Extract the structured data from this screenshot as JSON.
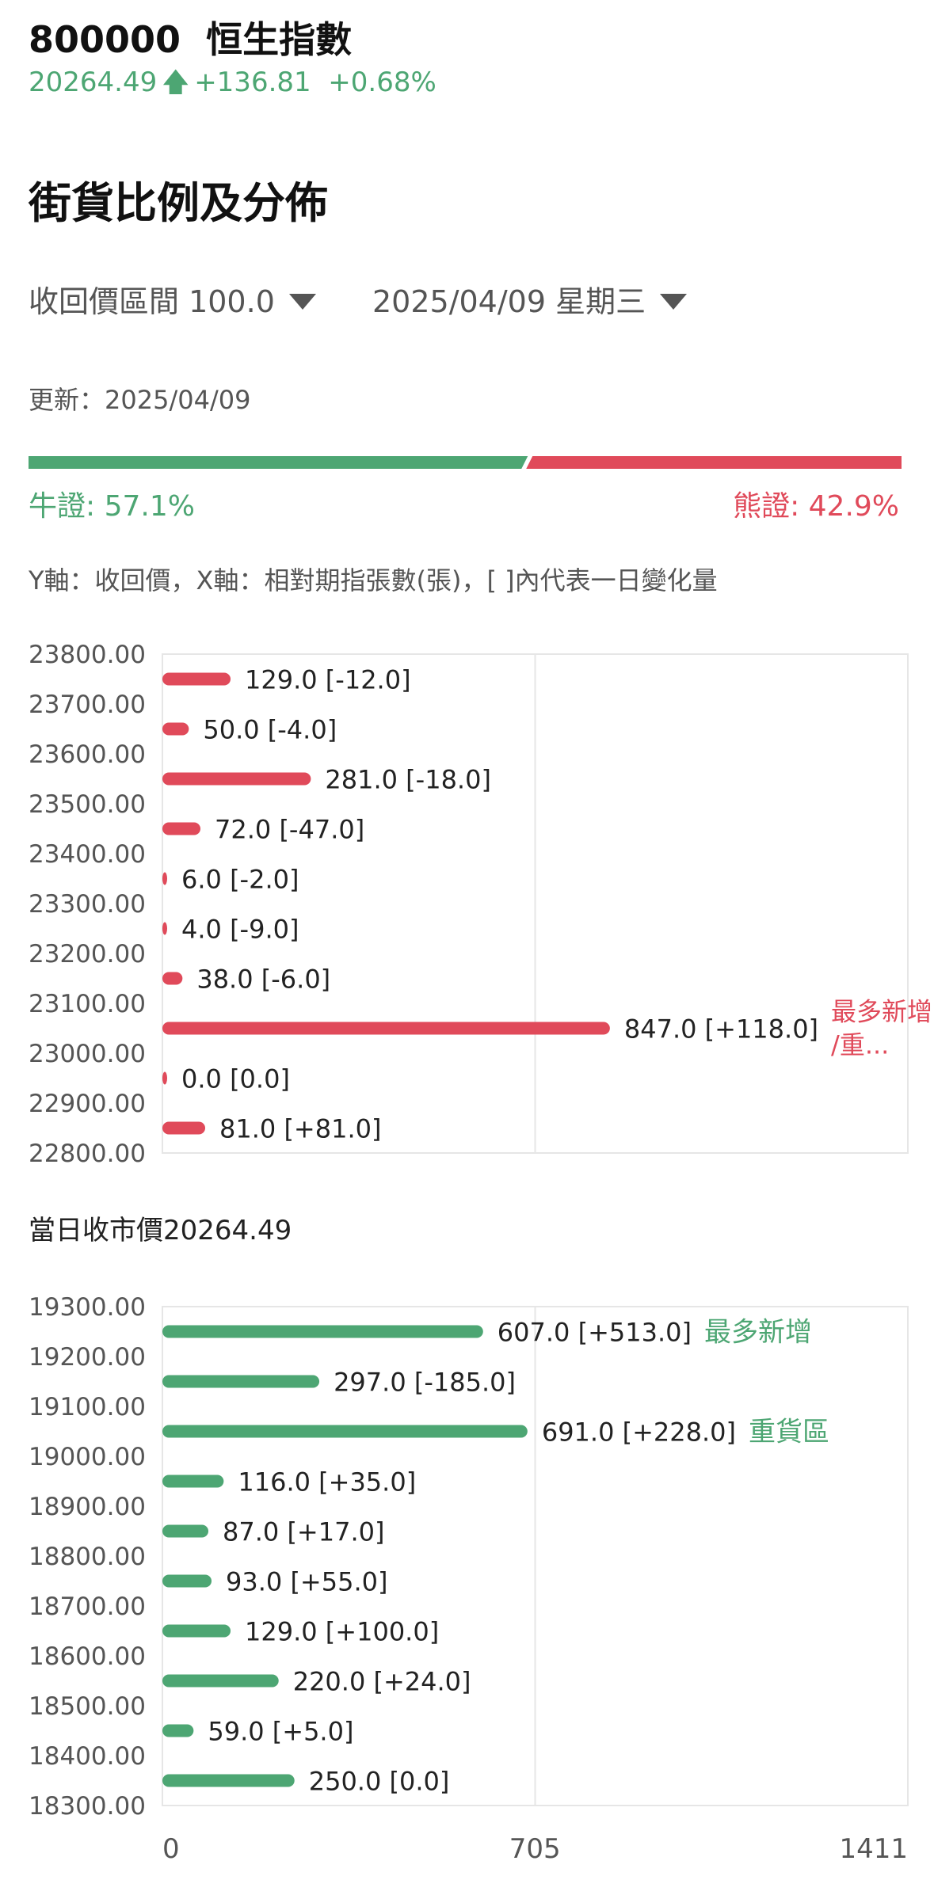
{
  "header": {
    "code": "800000",
    "name": "恒生指數",
    "price": "20264.49",
    "change": "+136.81",
    "change_pct": "+0.68%",
    "up_color": "#4da673"
  },
  "section_title": "街貨比例及分佈",
  "filters": {
    "range_label": "收回價區間 100.0",
    "date_label": "2025/04/09 星期三"
  },
  "updated": "更新：2025/04/09",
  "ratio": {
    "bull_label": "牛證: 57.1%",
    "bear_label": "熊證: 42.9%",
    "bull_pct": 57.1,
    "bear_pct": 42.9,
    "bull_color": "#4da673",
    "bear_color": "#e04a5a"
  },
  "axis_note": "Y軸：收回價，X軸：相對期指張數(張)，[ ]內代表一日變化量",
  "close_price_label": "當日收市價20264.49",
  "chart_data": [
    {
      "type": "bar",
      "orientation": "horizontal",
      "series_color": "#e04a5a",
      "y_ticks": [
        "23800.00",
        "23700.00",
        "23600.00",
        "23500.00",
        "23400.00",
        "23300.00",
        "23200.00",
        "23100.00",
        "23000.00",
        "22900.00",
        "22800.00"
      ],
      "bars": [
        {
          "value": 129.0,
          "label": "129.0 [-12.0]",
          "tag": ""
        },
        {
          "value": 50.0,
          "label": "50.0 [-4.0]",
          "tag": ""
        },
        {
          "value": 281.0,
          "label": "281.0 [-18.0]",
          "tag": ""
        },
        {
          "value": 72.0,
          "label": "72.0 [-47.0]",
          "tag": ""
        },
        {
          "value": 6.0,
          "label": "6.0 [-2.0]",
          "tag": ""
        },
        {
          "value": 4.0,
          "label": "4.0 [-9.0]",
          "tag": ""
        },
        {
          "value": 38.0,
          "label": "38.0 [-6.0]",
          "tag": ""
        },
        {
          "value": 847.0,
          "label": "847.0 [+118.0]",
          "tag": "最多新增/重..."
        },
        {
          "value": 0.0,
          "label": "0.0 [0.0]",
          "tag": ""
        },
        {
          "value": 81.0,
          "label": "81.0 [+81.0]",
          "tag": ""
        }
      ],
      "xlim": [
        0,
        1411
      ]
    },
    {
      "type": "bar",
      "orientation": "horizontal",
      "series_color": "#4da673",
      "y_ticks": [
        "19300.00",
        "19200.00",
        "19100.00",
        "19000.00",
        "18900.00",
        "18800.00",
        "18700.00",
        "18600.00",
        "18500.00",
        "18400.00",
        "18300.00"
      ],
      "bars": [
        {
          "value": 607.0,
          "label": "607.0 [+513.0]",
          "tag": "最多新增"
        },
        {
          "value": 297.0,
          "label": "297.0 [-185.0]",
          "tag": ""
        },
        {
          "value": 691.0,
          "label": "691.0 [+228.0]",
          "tag": "重貨區"
        },
        {
          "value": 116.0,
          "label": "116.0 [+35.0]",
          "tag": ""
        },
        {
          "value": 87.0,
          "label": "87.0 [+17.0]",
          "tag": ""
        },
        {
          "value": 93.0,
          "label": "93.0 [+55.0]",
          "tag": ""
        },
        {
          "value": 129.0,
          "label": "129.0 [+100.0]",
          "tag": ""
        },
        {
          "value": 220.0,
          "label": "220.0 [+24.0]",
          "tag": ""
        },
        {
          "value": 59.0,
          "label": "59.0 [+5.0]",
          "tag": ""
        },
        {
          "value": 250.0,
          "label": "250.0 [0.0]",
          "tag": ""
        }
      ],
      "xlim": [
        0,
        1411
      ],
      "x_ticks": [
        "0",
        "705",
        "1411"
      ]
    }
  ]
}
